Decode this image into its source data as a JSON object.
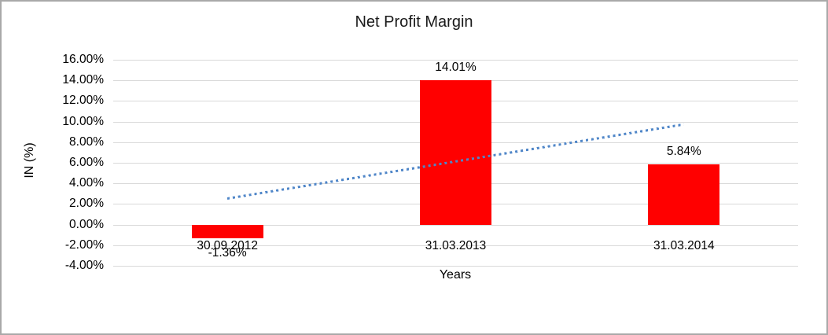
{
  "chart_data": {
    "type": "bar",
    "title": "Net Profit Margin",
    "xlabel": "Years",
    "ylabel": "IN (%)",
    "categories": [
      "30.09.2012",
      "31.03.2013",
      "31.03.2014"
    ],
    "values": [
      -1.36,
      14.01,
      5.84
    ],
    "data_labels": [
      "-1.36%",
      "14.01%",
      "5.84%"
    ],
    "ylim": [
      -4,
      16
    ],
    "ytick_step": 2,
    "ytick_labels": [
      "16.00%",
      "14.00%",
      "12.00%",
      "10.00%",
      "8.00%",
      "6.00%",
      "4.00%",
      "2.00%",
      "0.00%",
      "-2.00%",
      "-4.00%"
    ],
    "grid": true,
    "legend": "none",
    "bar_color": "#ff0000",
    "gridline_color": "#d9d9d9",
    "trendline": {
      "style": "dotted",
      "color": "#4f86c8",
      "start_value": 2.56,
      "end_value": 9.76
    }
  }
}
